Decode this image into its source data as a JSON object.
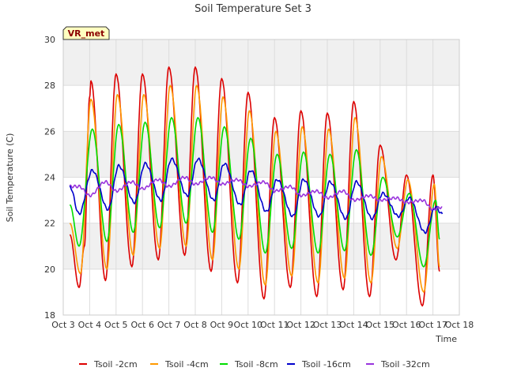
{
  "chart_data": {
    "type": "line",
    "title": "Soil Temperature Set 3",
    "xlabel": "Time",
    "ylabel": "Soil Temperature (C)",
    "ylim": [
      18,
      30
    ],
    "yticks": [
      18,
      20,
      22,
      24,
      26,
      28,
      30
    ],
    "xlim": [
      3,
      18
    ],
    "xticks": [
      {
        "v": 3,
        "label": "Oct 3"
      },
      {
        "v": 4,
        "label": "Oct 4"
      },
      {
        "v": 5,
        "label": "Oct 5"
      },
      {
        "v": 6,
        "label": "Oct 6"
      },
      {
        "v": 7,
        "label": "Oct 7"
      },
      {
        "v": 8,
        "label": "Oct 8"
      },
      {
        "v": 9,
        "label": "Oct 9"
      },
      {
        "v": 10,
        "label": "Oct 10"
      },
      {
        "v": 11,
        "label": "Oct 11"
      },
      {
        "v": 12,
        "label": "Oct 12"
      },
      {
        "v": 13,
        "label": "Oct 13"
      },
      {
        "v": 14,
        "label": "Oct 14"
      },
      {
        "v": 15,
        "label": "Oct 15"
      },
      {
        "v": 16,
        "label": "Oct 16"
      },
      {
        "v": 17,
        "label": "Oct 17"
      },
      {
        "v": 18,
        "label": "Oct 18"
      }
    ],
    "grid": true,
    "band_color": "#f0f0f0",
    "legend_position": "bottom",
    "badge": "VR_met",
    "series": [
      {
        "name": "Tsoil -2cm",
        "color": "#dd0000",
        "peak_lag": 0.0,
        "x_start": 3.25,
        "x_end": 17.25,
        "points": [
          [
            3.25,
            21.5
          ],
          [
            3.6,
            19.2
          ],
          [
            3.8,
            21
          ],
          [
            4.0,
            27.5
          ],
          [
            4.05,
            28.2
          ],
          [
            4.6,
            19.5
          ],
          [
            5.0,
            28.5
          ],
          [
            5.6,
            20.1
          ],
          [
            6.0,
            28.5
          ],
          [
            6.6,
            20.4
          ],
          [
            7.0,
            28.8
          ],
          [
            7.6,
            20.6
          ],
          [
            8.0,
            28.8
          ],
          [
            8.6,
            19.9
          ],
          [
            9.0,
            28.3
          ],
          [
            9.6,
            19.4
          ],
          [
            10.0,
            27.7
          ],
          [
            10.6,
            18.7
          ],
          [
            11.0,
            26.6
          ],
          [
            11.6,
            19.2
          ],
          [
            12.0,
            26.9
          ],
          [
            12.6,
            18.8
          ],
          [
            13.0,
            26.8
          ],
          [
            13.6,
            19.1
          ],
          [
            14.0,
            27.3
          ],
          [
            14.6,
            18.8
          ],
          [
            15.0,
            25.4
          ],
          [
            15.6,
            20.4
          ],
          [
            16.0,
            24.1
          ],
          [
            16.6,
            18.4
          ],
          [
            17.0,
            24.1
          ],
          [
            17.25,
            19.9
          ]
        ]
      },
      {
        "name": "Tsoil -4cm",
        "color": "#ff9900",
        "peak_lag": 0.05,
        "x_start": 3.25,
        "x_end": 17.25,
        "points": [
          [
            3.25,
            22.0
          ],
          [
            3.65,
            19.8
          ],
          [
            4.05,
            27.4
          ],
          [
            4.65,
            20.0
          ],
          [
            5.05,
            27.6
          ],
          [
            5.65,
            20.6
          ],
          [
            6.05,
            27.6
          ],
          [
            6.65,
            20.9
          ],
          [
            7.05,
            28.0
          ],
          [
            7.65,
            21.0
          ],
          [
            8.05,
            28.0
          ],
          [
            8.65,
            20.4
          ],
          [
            9.05,
            27.5
          ],
          [
            9.65,
            20.0
          ],
          [
            10.05,
            26.9
          ],
          [
            10.65,
            19.3
          ],
          [
            11.05,
            26.0
          ],
          [
            11.65,
            19.7
          ],
          [
            12.05,
            26.2
          ],
          [
            12.65,
            19.4
          ],
          [
            13.05,
            26.1
          ],
          [
            13.65,
            19.6
          ],
          [
            14.05,
            26.6
          ],
          [
            14.65,
            19.4
          ],
          [
            15.05,
            24.9
          ],
          [
            15.65,
            20.9
          ],
          [
            16.05,
            23.9
          ],
          [
            16.65,
            19.0
          ],
          [
            17.05,
            23.7
          ],
          [
            17.25,
            20.1
          ]
        ]
      },
      {
        "name": "Tsoil -8cm",
        "color": "#00dd00",
        "peak_lag": 0.12,
        "x_start": 3.25,
        "x_end": 17.25,
        "points": [
          [
            3.25,
            22.8
          ],
          [
            3.6,
            21.0
          ],
          [
            4.1,
            26.1
          ],
          [
            4.65,
            21.2
          ],
          [
            5.1,
            26.3
          ],
          [
            5.65,
            21.6
          ],
          [
            6.1,
            26.4
          ],
          [
            6.65,
            21.8
          ],
          [
            7.1,
            26.6
          ],
          [
            7.65,
            22.0
          ],
          [
            8.1,
            26.6
          ],
          [
            8.65,
            21.6
          ],
          [
            9.1,
            26.2
          ],
          [
            9.65,
            21.3
          ],
          [
            10.1,
            25.7
          ],
          [
            10.65,
            20.7
          ],
          [
            11.1,
            25.0
          ],
          [
            11.65,
            20.9
          ],
          [
            12.1,
            25.1
          ],
          [
            12.65,
            20.7
          ],
          [
            13.1,
            25.0
          ],
          [
            13.65,
            20.8
          ],
          [
            14.1,
            25.2
          ],
          [
            14.65,
            20.6
          ],
          [
            15.1,
            24.0
          ],
          [
            15.65,
            21.4
          ],
          [
            16.1,
            23.3
          ],
          [
            16.65,
            20.1
          ],
          [
            17.1,
            23.0
          ],
          [
            17.25,
            21.3
          ]
        ]
      },
      {
        "name": "Tsoil -16cm",
        "color": "#0000cc",
        "peak_lag": 0.3,
        "x_start": 3.25,
        "x_end": 17.35,
        "points": [
          [
            3.25,
            23.6
          ],
          [
            3.6,
            22.4
          ],
          [
            4.1,
            24.3
          ],
          [
            4.7,
            22.6
          ],
          [
            5.1,
            24.5
          ],
          [
            5.7,
            22.9
          ],
          [
            6.1,
            24.6
          ],
          [
            6.7,
            23.0
          ],
          [
            7.1,
            24.8
          ],
          [
            7.7,
            23.2
          ],
          [
            8.1,
            24.8
          ],
          [
            8.7,
            23.0
          ],
          [
            9.1,
            24.6
          ],
          [
            9.7,
            22.8
          ],
          [
            10.1,
            24.3
          ],
          [
            10.7,
            22.5
          ],
          [
            11.1,
            23.9
          ],
          [
            11.7,
            22.3
          ],
          [
            12.1,
            23.9
          ],
          [
            12.7,
            22.3
          ],
          [
            13.1,
            23.8
          ],
          [
            13.7,
            22.2
          ],
          [
            14.1,
            23.8
          ],
          [
            14.7,
            22.2
          ],
          [
            15.1,
            23.3
          ],
          [
            15.7,
            22.3
          ],
          [
            16.1,
            23.1
          ],
          [
            16.7,
            21.6
          ],
          [
            17.1,
            22.7
          ],
          [
            17.35,
            22.4
          ]
        ]
      },
      {
        "name": "Tsoil -32cm",
        "color": "#9933dd",
        "peak_lag": 0.55,
        "x_start": 3.25,
        "x_end": 17.35,
        "points": [
          [
            3.25,
            23.6
          ],
          [
            3.6,
            23.6
          ],
          [
            4.0,
            23.2
          ],
          [
            4.6,
            23.8
          ],
          [
            5.0,
            23.4
          ],
          [
            5.6,
            23.8
          ],
          [
            6.0,
            23.5
          ],
          [
            6.6,
            23.9
          ],
          [
            7.0,
            23.6
          ],
          [
            7.6,
            24.0
          ],
          [
            8.0,
            23.7
          ],
          [
            8.6,
            24.0
          ],
          [
            9.0,
            23.7
          ],
          [
            9.6,
            23.9
          ],
          [
            10.0,
            23.6
          ],
          [
            10.6,
            23.8
          ],
          [
            11.0,
            23.4
          ],
          [
            11.6,
            23.6
          ],
          [
            12.0,
            23.2
          ],
          [
            12.6,
            23.4
          ],
          [
            13.0,
            23.1
          ],
          [
            13.6,
            23.4
          ],
          [
            14.0,
            23.0
          ],
          [
            14.6,
            23.2
          ],
          [
            15.0,
            23.0
          ],
          [
            15.6,
            23.1
          ],
          [
            16.0,
            22.9
          ],
          [
            16.6,
            23.0
          ],
          [
            17.0,
            22.6
          ],
          [
            17.35,
            22.7
          ]
        ]
      }
    ]
  }
}
